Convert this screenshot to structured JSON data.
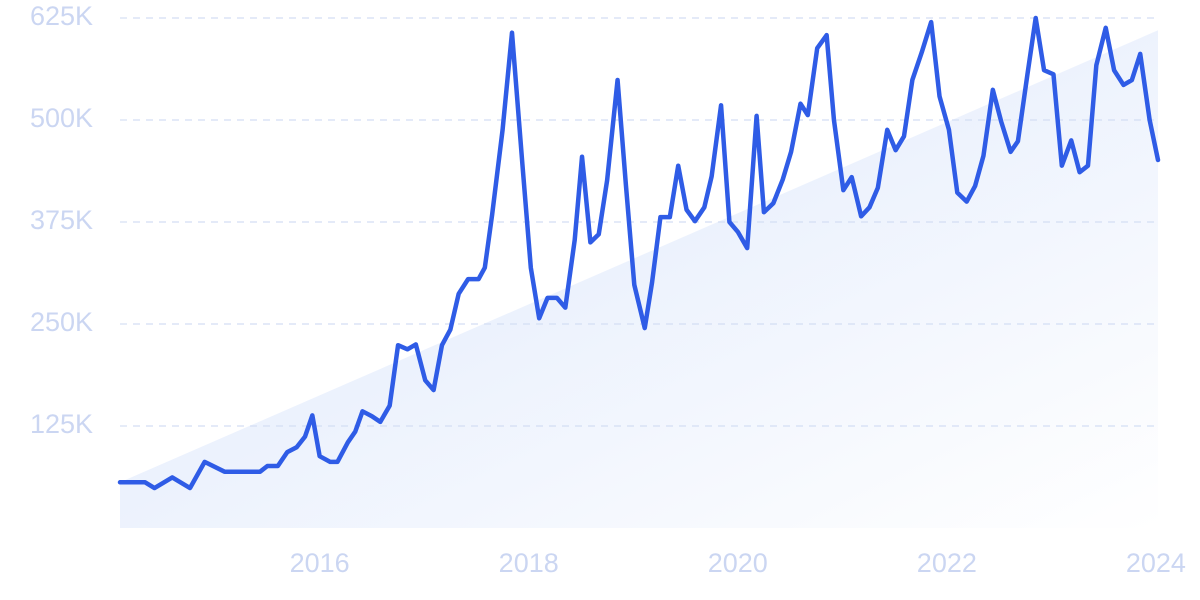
{
  "chart_data": {
    "type": "line",
    "color": "#2f5ce6",
    "grid": true,
    "x": [
      2014.09,
      2014.33,
      2014.42,
      2014.59,
      2014.76,
      2014.9,
      2015.09,
      2015.43,
      2015.5,
      2015.6,
      2015.69,
      2015.78,
      2015.86,
      2015.93,
      2016.0,
      2016.1,
      2016.17,
      2016.27,
      2016.34,
      2016.41,
      2016.5,
      2016.58,
      2016.67,
      2016.75,
      2016.84,
      2016.92,
      2017.01,
      2017.09,
      2017.17,
      2017.25,
      2017.33,
      2017.42,
      2017.52,
      2017.58,
      2017.65,
      2017.75,
      2017.84,
      2017.94,
      2018.02,
      2018.1,
      2018.18,
      2018.27,
      2018.35,
      2018.44,
      2018.51,
      2018.59,
      2018.67,
      2018.75,
      2018.85,
      2018.93,
      2019.01,
      2019.11,
      2019.18,
      2019.26,
      2019.35,
      2019.43,
      2019.51,
      2019.59,
      2019.68,
      2019.75,
      2019.84,
      2019.92,
      2020.0,
      2020.09,
      2020.18,
      2020.25,
      2020.34,
      2020.43,
      2020.51,
      2020.6,
      2020.67,
      2020.76,
      2020.85,
      2020.92,
      2021.01,
      2021.09,
      2021.18,
      2021.26,
      2021.34,
      2021.43,
      2021.51,
      2021.59,
      2021.67,
      2021.76,
      2021.85,
      2021.93,
      2022.02,
      2022.1,
      2022.19,
      2022.27,
      2022.35,
      2022.44,
      2022.52,
      2022.61,
      2022.68,
      2022.77,
      2022.85,
      2022.93,
      2023.02,
      2023.1,
      2023.19,
      2023.27,
      2023.35,
      2023.43,
      2023.52,
      2023.6,
      2023.69,
      2023.77,
      2023.85,
      2023.94,
      2024.02
    ],
    "values": [
      56000,
      56000,
      49000,
      62000,
      49000,
      81000,
      69000,
      69000,
      76000,
      76000,
      93000,
      99000,
      112000,
      138000,
      88000,
      81000,
      81000,
      105000,
      118000,
      143000,
      137000,
      130000,
      150000,
      224000,
      219000,
      225000,
      181000,
      169000,
      224000,
      243000,
      287000,
      305000,
      305000,
      319000,
      384000,
      488000,
      607000,
      445000,
      319000,
      257000,
      282000,
      282000,
      270000,
      353000,
      455000,
      350000,
      360000,
      426000,
      549000,
      420000,
      298000,
      245000,
      301000,
      381000,
      381000,
      444000,
      390000,
      376000,
      393000,
      431000,
      518000,
      375000,
      363000,
      343000,
      505000,
      387000,
      398000,
      427000,
      461000,
      520000,
      506000,
      588000,
      604000,
      500000,
      414000,
      430000,
      382000,
      393000,
      417000,
      488000,
      463000,
      480000,
      549000,
      583000,
      620000,
      529000,
      488000,
      411000,
      400000,
      419000,
      456000,
      537000,
      498000,
      461000,
      474000,
      555000,
      625000,
      561000,
      556000,
      444000,
      475000,
      436000,
      444000,
      567000,
      613000,
      561000,
      543000,
      549000,
      581000,
      500000,
      451000
    ],
    "trend": {
      "x": [
        2014.09,
        2024.02
      ],
      "values": [
        56000,
        610000
      ]
    },
    "xlim": [
      2014.09,
      2024.02
    ],
    "xticks": [
      2016,
      2018,
      2020,
      2022,
      2024
    ],
    "ylim": [
      0,
      625000
    ],
    "yticks": [
      {
        "value": 125000,
        "label": "125K"
      },
      {
        "value": 250000,
        "label": "250K"
      },
      {
        "value": 375000,
        "label": "375K"
      },
      {
        "value": 500000,
        "label": "500K"
      },
      {
        "value": 625000,
        "label": "625K"
      }
    ]
  }
}
